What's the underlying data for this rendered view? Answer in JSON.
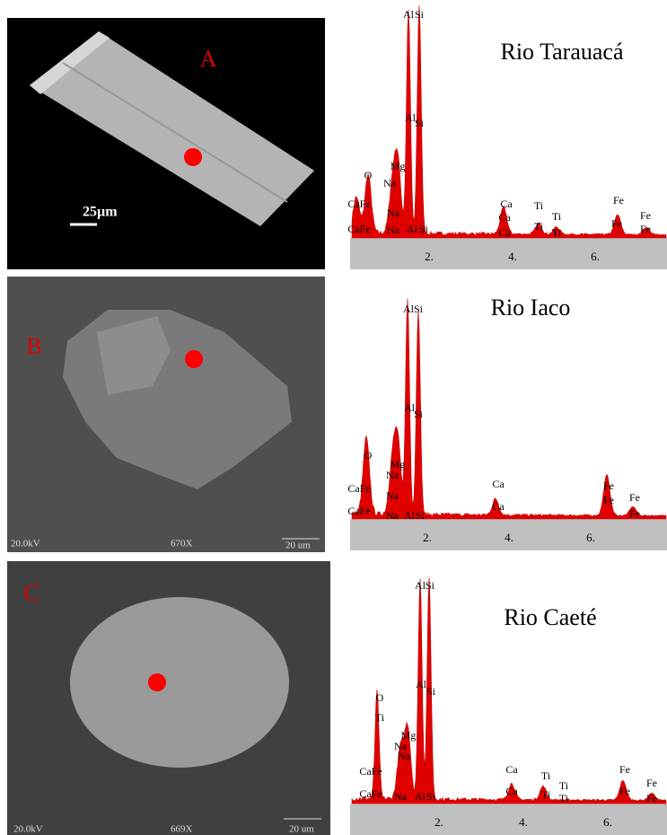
{
  "panels": [
    {
      "letter": "A",
      "site": "Rio Tarauacá",
      "image_labels": [
        "25µm"
      ],
      "ticks": [
        "2.",
        "4.",
        "6."
      ],
      "elements": [
        "Al",
        "Si",
        "Al",
        "Si",
        "O",
        "Mg",
        "Na",
        "CaFe",
        "Na",
        "Ca",
        "Ca",
        "Ti",
        "Ti",
        "Fe",
        "Fe",
        "Fe",
        "CaFe",
        "Na",
        "Al",
        "Si",
        "Ca",
        "Ti",
        "Ti",
        "Fe"
      ]
    },
    {
      "letter": "B",
      "site": "Rio Iaco",
      "image_labels": [
        "20.0kV",
        "670X",
        "20 um"
      ],
      "ticks": [
        "2.",
        "4.",
        "6."
      ],
      "elements": [
        "Al",
        "Si",
        "Al",
        "Si",
        "O",
        "Mg",
        "Na",
        "CaFe",
        "Na",
        "Ca",
        "Ca",
        "Fe",
        "Fe",
        "Fe",
        "Fe",
        "CaFe",
        "Na",
        "Al",
        "Si"
      ]
    },
    {
      "letter": "C",
      "site": "Rio Caeté",
      "image_labels": [
        "20.0kV",
        "669X",
        "20 um"
      ],
      "ticks": [
        "2.",
        "4.",
        "6."
      ],
      "elements": [
        "Al",
        "Si",
        "Al",
        "Si",
        "O",
        "Ti",
        "Mg",
        "Na",
        "CaFe",
        "Na",
        "Ca",
        "Ca",
        "Ti",
        "Ti",
        "Ti",
        "Ti",
        "Fe",
        "Fe",
        "Fe",
        "Fe",
        "CaFe",
        "Na",
        "Al",
        "Si"
      ]
    }
  ]
}
